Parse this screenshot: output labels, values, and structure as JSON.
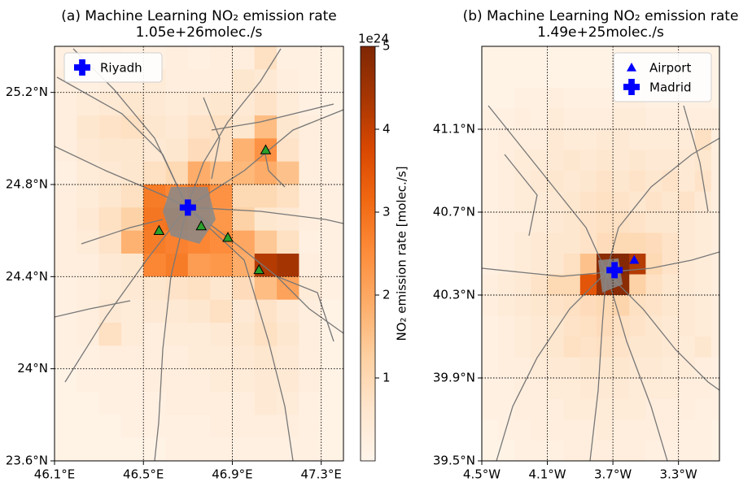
{
  "chart_data": [
    {
      "type": "heatmap",
      "title": "(a) Machine Learning NO₂ emission rate",
      "subtitle": "1.05e+26molec./s",
      "xlim": [
        46.1,
        47.4
      ],
      "ylim": [
        23.6,
        25.4
      ],
      "xticks": [
        {
          "value": 46.1,
          "label": "46.1°E"
        },
        {
          "value": 46.5,
          "label": "46.5°E"
        },
        {
          "value": 46.9,
          "label": "46.9°E"
        },
        {
          "value": 47.3,
          "label": "47.3°E"
        }
      ],
      "yticks": [
        {
          "value": 23.6,
          "label": "23.6°N"
        },
        {
          "value": 24.0,
          "label": "24°N"
        },
        {
          "value": 24.4,
          "label": "24.4°N"
        },
        {
          "value": 24.8,
          "label": "24.8°N"
        },
        {
          "value": 25.2,
          "label": "25.2°N"
        }
      ],
      "grid": true,
      "legend": "upper left",
      "clim": [
        0,
        5
      ],
      "colormap": [
        "#fff5eb",
        "#fee6ce",
        "#fdd0a2",
        "#fdae6b",
        "#fd8d3c",
        "#f16913",
        "#d94801",
        "#a63603",
        "#7f2704"
      ],
      "colorbar": {
        "label": "NO₂ emission rate [molec./s]",
        "offset_label": "1e24",
        "ticks": [
          1,
          2,
          3,
          4,
          5
        ]
      },
      "x_edges": [
        46.1,
        46.2,
        46.3,
        46.4,
        46.5,
        46.6,
        46.7,
        46.8,
        46.9,
        47.0,
        47.1,
        47.2,
        47.3,
        47.4
      ],
      "y_edges": [
        25.4,
        25.3,
        25.2,
        25.1,
        25.0,
        24.9,
        24.8,
        24.7,
        24.6,
        24.5,
        24.4,
        24.3,
        24.2,
        24.1,
        24.0,
        23.9,
        23.8,
        23.7,
        23.6
      ],
      "z": [
        [
          0.2,
          0.2,
          0.3,
          0.2,
          0.2,
          0.3,
          0.2,
          0.3,
          0.3,
          0.8,
          0.2,
          0.2,
          0.1
        ],
        [
          0.3,
          0.2,
          0.3,
          0.3,
          0.4,
          0.3,
          0.3,
          0.3,
          0.6,
          0.5,
          0.3,
          0.2,
          0.1
        ],
        [
          0.3,
          0.4,
          0.5,
          0.6,
          0.5,
          0.4,
          0.5,
          0.6,
          0.5,
          0.7,
          0.4,
          0.2,
          0.1
        ],
        [
          0.3,
          0.6,
          0.7,
          0.8,
          0.6,
          0.5,
          0.7,
          0.8,
          0.6,
          1.6,
          0.6,
          0.3,
          0.2
        ],
        [
          0.3,
          0.5,
          0.6,
          0.6,
          0.5,
          0.6,
          0.9,
          0.8,
          1.8,
          2.4,
          0.7,
          0.3,
          0.2
        ],
        [
          0.2,
          0.4,
          0.5,
          0.6,
          0.8,
          1.0,
          1.9,
          1.6,
          1.7,
          1.9,
          1.5,
          0.3,
          0.2
        ],
        [
          0.3,
          0.4,
          0.6,
          0.8,
          2.8,
          2.6,
          2.9,
          2.4,
          1.0,
          1.0,
          0.8,
          0.3,
          0.2
        ],
        [
          0.3,
          0.5,
          0.8,
          1.2,
          2.9,
          3.0,
          2.7,
          2.3,
          1.2,
          0.6,
          0.5,
          0.3,
          0.2
        ],
        [
          0.3,
          0.4,
          0.7,
          1.8,
          2.8,
          2.7,
          2.6,
          2.5,
          2.0,
          1.4,
          0.8,
          0.2,
          0.2
        ],
        [
          0.3,
          0.3,
          0.5,
          0.6,
          2.6,
          2.8,
          2.2,
          2.3,
          1.9,
          4.2,
          4.4,
          0.3,
          0.2
        ],
        [
          0.2,
          0.3,
          0.4,
          0.5,
          0.6,
          0.7,
          0.8,
          0.6,
          0.9,
          1.6,
          2.1,
          0.4,
          0.2
        ],
        [
          0.2,
          0.3,
          0.5,
          0.4,
          0.5,
          0.5,
          0.6,
          0.8,
          0.5,
          0.7,
          0.5,
          0.3,
          0.1
        ],
        [
          0.2,
          0.3,
          0.8,
          0.4,
          0.3,
          0.4,
          0.4,
          0.5,
          0.6,
          0.8,
          0.6,
          0.3,
          0.1
        ],
        [
          0.2,
          0.2,
          0.3,
          0.3,
          0.3,
          0.3,
          0.4,
          0.4,
          0.5,
          0.6,
          0.5,
          0.3,
          0.1
        ],
        [
          0.1,
          0.2,
          0.2,
          0.2,
          0.3,
          0.3,
          0.3,
          0.4,
          0.4,
          0.5,
          0.5,
          0.3,
          0.1
        ],
        [
          0.1,
          0.1,
          0.2,
          0.2,
          0.2,
          0.3,
          0.3,
          0.3,
          0.3,
          0.5,
          0.4,
          0.2,
          0.1
        ],
        [
          0.1,
          0.1,
          0.1,
          0.2,
          0.2,
          0.2,
          0.2,
          0.3,
          0.3,
          0.3,
          0.3,
          0.2,
          0.1
        ],
        [
          0.1,
          0.1,
          0.1,
          0.1,
          0.1,
          0.2,
          0.2,
          0.2,
          0.2,
          0.2,
          0.2,
          0.2,
          0.1
        ]
      ],
      "markers": [
        {
          "shape": "triangle",
          "color": "#2ca02c",
          "x": [
            46.57,
            46.76,
            46.88,
            47.02,
            47.05
          ],
          "y": [
            24.6,
            24.62,
            24.57,
            24.43,
            24.95
          ]
        },
        {
          "name": "Riyadh",
          "shape": "plus",
          "color": "#0000ff",
          "x": [
            46.7
          ],
          "y": [
            24.7
          ]
        }
      ]
    },
    {
      "type": "heatmap",
      "title": "(b) Machine Learning NO₂ emission rate",
      "subtitle": "1.49e+25molec./s",
      "xlim": [
        -4.5,
        -3.05
      ],
      "ylim": [
        39.5,
        41.5
      ],
      "xticks": [
        {
          "value": -4.5,
          "label": "4.5°W"
        },
        {
          "value": -4.1,
          "label": "4.1°W"
        },
        {
          "value": -3.7,
          "label": "3.7°W"
        },
        {
          "value": -3.3,
          "label": "3.3°W"
        }
      ],
      "yticks": [
        {
          "value": 39.5,
          "label": "39.5°N"
        },
        {
          "value": 39.9,
          "label": "39.9°N"
        },
        {
          "value": 40.3,
          "label": "40.3°N"
        },
        {
          "value": 40.7,
          "label": "40.7°N"
        },
        {
          "value": 41.1,
          "label": "41.1°N"
        }
      ],
      "grid": true,
      "legend": "upper right",
      "clim": [
        0,
        5
      ],
      "colormap": [
        "#fff5eb",
        "#fee6ce",
        "#fdd0a2",
        "#fdae6b",
        "#fd8d3c",
        "#f16913",
        "#d94801",
        "#a63603",
        "#7f2704"
      ],
      "x_edges": [
        -4.5,
        -4.4,
        -4.3,
        -4.2,
        -4.1,
        -4.0,
        -3.9,
        -3.8,
        -3.7,
        -3.6,
        -3.5,
        -3.4,
        -3.3,
        -3.2,
        -3.1,
        -3.0
      ],
      "y_edges": [
        41.5,
        41.4,
        41.3,
        41.2,
        41.1,
        41.0,
        40.9,
        40.8,
        40.7,
        40.6,
        40.5,
        40.4,
        40.3,
        40.2,
        40.1,
        40.0,
        39.9,
        39.8,
        39.7,
        39.6,
        39.5
      ],
      "z": [
        [
          0.1,
          0.1,
          0.1,
          0.1,
          0.1,
          0.1,
          0.1,
          0.1,
          0.1,
          0.1,
          0.1,
          0.1,
          0.1,
          0.1,
          0.1
        ],
        [
          0.1,
          0.1,
          0.1,
          0.1,
          0.1,
          0.1,
          0.1,
          0.1,
          0.1,
          0.1,
          0.1,
          0.1,
          0.1,
          0.1,
          0.1
        ],
        [
          0.1,
          0.1,
          0.2,
          0.2,
          0.3,
          0.2,
          0.2,
          0.2,
          0.3,
          0.3,
          0.2,
          0.2,
          0.2,
          0.2,
          0.1
        ],
        [
          0.2,
          0.2,
          0.3,
          0.2,
          0.4,
          0.3,
          0.3,
          0.3,
          0.4,
          0.4,
          0.3,
          0.3,
          0.3,
          0.3,
          0.3
        ],
        [
          0.2,
          0.3,
          0.3,
          0.3,
          0.5,
          0.4,
          0.4,
          0.5,
          0.5,
          0.4,
          0.4,
          0.4,
          0.4,
          0.8,
          0.3
        ],
        [
          0.2,
          0.3,
          0.4,
          0.4,
          0.5,
          0.6,
          0.5,
          0.6,
          0.5,
          0.6,
          0.5,
          0.5,
          0.5,
          0.6,
          0.3
        ],
        [
          0.2,
          0.3,
          0.4,
          0.5,
          0.6,
          0.5,
          0.6,
          0.7,
          0.6,
          0.7,
          0.6,
          0.7,
          0.5,
          0.7,
          0.3
        ],
        [
          0.2,
          0.3,
          0.4,
          0.4,
          0.5,
          0.6,
          0.7,
          0.8,
          0.7,
          0.6,
          0.7,
          0.6,
          0.7,
          0.5,
          0.3
        ],
        [
          0.2,
          0.3,
          0.3,
          0.4,
          0.5,
          0.6,
          0.7,
          0.8,
          0.8,
          0.7,
          0.6,
          0.6,
          0.5,
          0.4,
          0.3
        ],
        [
          0.2,
          0.3,
          0.4,
          0.5,
          0.6,
          0.6,
          0.7,
          0.9,
          1.0,
          1.0,
          0.9,
          0.7,
          0.5,
          0.4,
          0.3
        ],
        [
          0.2,
          0.3,
          0.4,
          0.5,
          0.6,
          0.8,
          1.5,
          4.8,
          4.9,
          4.2,
          1.0,
          0.7,
          0.5,
          0.4,
          0.3
        ],
        [
          0.3,
          0.4,
          0.5,
          0.7,
          1.0,
          1.0,
          3.5,
          4.6,
          4.8,
          1.2,
          0.8,
          0.6,
          0.5,
          0.4,
          0.3
        ],
        [
          0.3,
          0.4,
          0.5,
          0.6,
          0.7,
          0.8,
          0.9,
          1.0,
          1.1,
          0.8,
          0.7,
          0.6,
          0.5,
          0.4,
          0.3
        ],
        [
          0.2,
          0.3,
          0.4,
          0.5,
          0.6,
          0.7,
          0.8,
          0.9,
          0.8,
          0.7,
          0.6,
          0.5,
          0.5,
          0.4,
          0.3
        ],
        [
          0.2,
          0.3,
          0.4,
          0.5,
          0.6,
          0.8,
          0.7,
          0.8,
          0.7,
          0.6,
          0.6,
          0.5,
          0.4,
          0.6,
          0.3
        ],
        [
          0.2,
          0.3,
          0.3,
          0.4,
          0.5,
          0.5,
          0.6,
          0.6,
          0.6,
          0.5,
          0.5,
          0.4,
          0.4,
          0.3,
          0.2
        ],
        [
          0.2,
          0.2,
          0.3,
          0.3,
          0.4,
          0.4,
          0.5,
          0.5,
          0.5,
          0.4,
          0.4,
          0.4,
          0.3,
          0.3,
          0.2
        ],
        [
          0.2,
          0.2,
          0.3,
          0.3,
          0.3,
          0.4,
          0.4,
          0.4,
          0.4,
          0.4,
          0.3,
          0.3,
          0.3,
          0.2,
          0.2
        ],
        [
          0.1,
          0.2,
          0.2,
          0.3,
          0.3,
          0.3,
          0.3,
          0.4,
          0.3,
          0.3,
          0.3,
          0.3,
          0.2,
          0.2,
          0.1
        ],
        [
          0.1,
          0.1,
          0.2,
          0.2,
          0.2,
          0.3,
          0.3,
          0.3,
          0.3,
          0.3,
          0.2,
          0.2,
          0.2,
          0.2,
          0.1
        ]
      ],
      "markers": [
        {
          "name": "Airport",
          "shape": "triangle",
          "color": "#0000ff",
          "x": [
            -3.57
          ],
          "y": [
            40.47
          ]
        },
        {
          "name": "Madrid",
          "shape": "plus",
          "color": "#0000ff",
          "x": [
            -3.69
          ],
          "y": [
            40.42
          ]
        }
      ]
    }
  ]
}
